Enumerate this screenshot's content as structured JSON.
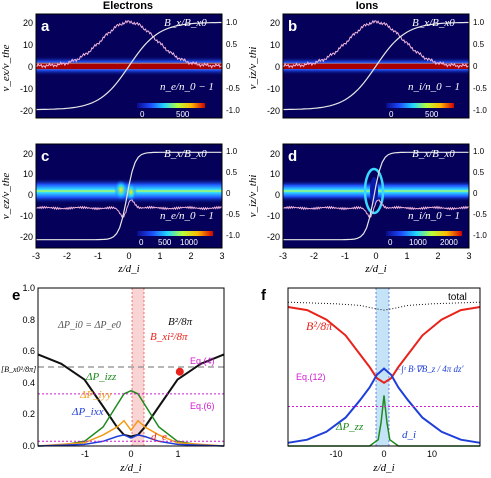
{
  "headers": {
    "left": "Electrons",
    "right": "Ions"
  },
  "colors": {
    "field": "#e6e6e6",
    "density": "#f1b5dd",
    "red": "#e8231b",
    "black": "#111111",
    "blue": "#1f3fd8",
    "green": "#1e8a1e",
    "orange": "#f29b16",
    "purple": "#9a5fc0",
    "magenta": "#d21bd2",
    "grey": "#8a8a8a",
    "shade_red": "#f6c9c9",
    "shade_blue": "#bfe0f6"
  },
  "panels": {
    "a": {
      "letter": "a",
      "ylabel": "v_ex/v_the",
      "yticks": [
        "20",
        "10",
        "0",
        "-10",
        "-20"
      ],
      "right_ticks": [
        "1.0",
        "0.5",
        "0",
        "-0.5",
        "-1.0"
      ],
      "label_field": "B_x/B_x0",
      "label_density": "n_e/n_0 − 1",
      "colorbar": {
        "min": "0",
        "max": "500"
      }
    },
    "b": {
      "letter": "b",
      "ylabel": "v_iz/v_thi",
      "yticks": [
        "20",
        "10",
        "0",
        "-10",
        "-20"
      ],
      "right_ticks": [
        "1.0",
        "0.5",
        "0",
        "-0.5",
        "-1.0"
      ],
      "label_field": "B_x/B_x0",
      "label_density": "n_i/n_0 − 1",
      "colorbar": {
        "min": "0",
        "max": "500"
      }
    },
    "c": {
      "letter": "c",
      "ylabel": "v_ez/v_the",
      "yticks": [
        "20",
        "10",
        "0",
        "-10",
        "-20"
      ],
      "right_ticks": [
        "1.0",
        "0.5",
        "0",
        "-0.5",
        "-1.0"
      ],
      "xticks": [
        "-3",
        "-2",
        "-1",
        "0",
        "1",
        "2",
        "3"
      ],
      "xlabel": "z/d_i",
      "label_field": "B_x/B_x0",
      "label_density": "n_e/n_0 − 1",
      "colorbar": {
        "min": "0",
        "mid": "500",
        "max": "1000"
      }
    },
    "d": {
      "letter": "d",
      "ylabel": "v_iz/v_thi",
      "yticks": [
        "20",
        "10",
        "0",
        "-10",
        "-20"
      ],
      "right_ticks": [
        "1.0",
        "0.5",
        "0",
        "-0.5",
        "-1.0"
      ],
      "xticks": [
        "-3",
        "-2",
        "-1",
        "0",
        "1",
        "2",
        "3"
      ],
      "xlabel": "z/d_i",
      "label_field": "B_x/B_x0",
      "label_density": "n_i/n_0 − 1",
      "colorbar": {
        "min": "0",
        "mid": "1000",
        "max": "2000"
      }
    },
    "e": {
      "letter": "e",
      "yticks": [
        "1.0",
        "0.8",
        "0.6",
        "0.4",
        "0.2",
        "0.0"
      ],
      "xticks": [
        "-1",
        "0",
        "1"
      ],
      "xlabel": "z/d_i",
      "ylabel": "[B_x0²/8π]",
      "labels": {
        "dp": "ΔP_i0 = ΔP_e0",
        "b2": "B²/8π",
        "bxi": "B_xi²/8π",
        "eq4": "Eq.(4)",
        "eq6": "Eq.(6)",
        "pzz": "ΔP_izz",
        "pyy": "ΔP_iyy",
        "pxx": "ΔP_ixx",
        "de": "d_e"
      }
    },
    "f": {
      "letter": "f",
      "xticks": [
        "-10",
        "0",
        "10"
      ],
      "xlabel": "z/d_i",
      "labels": {
        "total": "total",
        "b2": "B²/8π",
        "integral": "−∫ᶻ B·∇B_z / 4π dz′",
        "eq12": "Eq.(12)",
        "pzz": "ΔP_zz",
        "di": "d_i"
      }
    }
  },
  "chart_data": [
    {
      "panel": "e",
      "type": "line",
      "xlabel": "z/d_i",
      "xlim": [
        -2.0,
        2.0
      ],
      "ylim": [
        0.0,
        1.0
      ],
      "series": [
        {
          "name": "B²/8π",
          "x": [
            -2.0,
            -1.5,
            -1.0,
            -0.6,
            -0.3,
            -0.15,
            0.0,
            0.15,
            0.3,
            0.6,
            1.0,
            1.5,
            2.0
          ],
          "y": [
            0.58,
            0.52,
            0.42,
            0.25,
            0.12,
            0.07,
            0.06,
            0.07,
            0.12,
            0.25,
            0.42,
            0.52,
            0.58
          ]
        },
        {
          "name": "ΔP_izz",
          "x": [
            -2.0,
            -1.5,
            -1.0,
            -0.6,
            -0.3,
            -0.15,
            0.0,
            0.15,
            0.3,
            0.6,
            1.0,
            1.5,
            2.0
          ],
          "y": [
            0.0,
            0.005,
            0.03,
            0.12,
            0.26,
            0.33,
            0.35,
            0.33,
            0.26,
            0.12,
            0.03,
            0.005,
            0.0
          ]
        },
        {
          "name": "ΔP_iyy",
          "x": [
            -2.0,
            -1.5,
            -1.0,
            -0.6,
            -0.3,
            -0.15,
            0.0,
            0.15,
            0.3,
            0.6,
            1.0,
            1.5,
            2.0
          ],
          "y": [
            0.0,
            0.01,
            0.02,
            0.07,
            0.12,
            0.16,
            0.1,
            0.16,
            0.12,
            0.07,
            0.02,
            0.01,
            0.0
          ]
        },
        {
          "name": "ΔP_ixx",
          "x": [
            -2.0,
            -1.5,
            -1.0,
            -0.6,
            -0.3,
            -0.15,
            0.0,
            0.15,
            0.3,
            0.6,
            1.0,
            1.5,
            2.0
          ],
          "y": [
            0.0,
            0.005,
            0.01,
            0.03,
            0.06,
            0.07,
            0.05,
            0.07,
            0.06,
            0.03,
            0.01,
            0.005,
            0.0
          ]
        },
        {
          "name": "ΔP_i0 = ΔP_e0",
          "x": [
            -2.0,
            2.0
          ],
          "y": [
            0.5,
            0.5
          ]
        },
        {
          "name": "Eq.(4)",
          "x": [
            -2.0,
            2.0
          ],
          "y": [
            0.33,
            0.33
          ]
        },
        {
          "name": "Eq.(6)",
          "x": [
            -2.0,
            2.0
          ],
          "y": [
            0.03,
            0.03
          ]
        }
      ],
      "markers": [
        {
          "name": "B_xi²/8π",
          "x": 1.05,
          "y": 0.47
        }
      ]
    },
    {
      "panel": "f",
      "type": "line",
      "xlabel": "z/d_i",
      "xlim": [
        -20.0,
        20.0
      ],
      "ylim": [
        0.0,
        1.0
      ],
      "series": [
        {
          "name": "total",
          "x": [
            -20,
            -10,
            -5,
            -2,
            0,
            2,
            5,
            10,
            20
          ],
          "y": [
            0.91,
            0.9,
            0.89,
            0.87,
            0.86,
            0.87,
            0.89,
            0.9,
            0.91
          ]
        },
        {
          "name": "B²/8π",
          "x": [
            -20,
            -16,
            -12,
            -8,
            -5,
            -3,
            -1.5,
            0,
            1.5,
            3,
            5,
            8,
            12,
            16,
            20
          ],
          "y": [
            0.88,
            0.86,
            0.8,
            0.7,
            0.58,
            0.5,
            0.43,
            0.4,
            0.43,
            0.5,
            0.58,
            0.7,
            0.8,
            0.86,
            0.88
          ]
        },
        {
          "name": "−∫ᶻ B·∇B_z / 4π dz′",
          "x": [
            -20,
            -16,
            -12,
            -8,
            -5,
            -3,
            -1.5,
            0,
            1.5,
            3,
            5,
            8,
            12,
            16,
            20
          ],
          "y": [
            0.02,
            0.04,
            0.09,
            0.18,
            0.29,
            0.37,
            0.45,
            0.49,
            0.45,
            0.37,
            0.29,
            0.18,
            0.09,
            0.04,
            0.02
          ]
        },
        {
          "name": "ΔP_zz",
          "x": [
            -20,
            -3,
            -1.2,
            -0.6,
            0,
            0.6,
            1.2,
            3,
            20
          ],
          "y": [
            0.0,
            0.0,
            0.04,
            0.15,
            0.32,
            0.15,
            0.04,
            0.0,
            0.0
          ]
        },
        {
          "name": "Eq.(12)",
          "x": [
            -20,
            20
          ],
          "y": [
            0.25,
            0.25
          ]
        }
      ]
    }
  ]
}
